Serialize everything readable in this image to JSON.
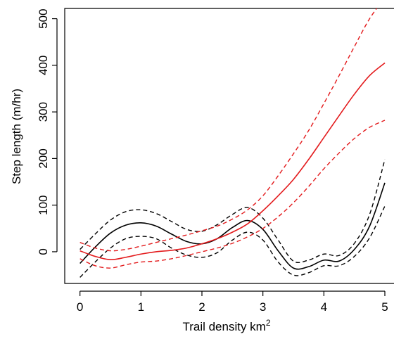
{
  "chart_data": {
    "type": "line",
    "title": "",
    "xlabel": "Trail density km",
    "xlabel_superscript": "2",
    "ylabel": "Step length (m/hr)",
    "xlim": [
      -0.25,
      5.15
    ],
    "ylim": [
      -68,
      522
    ],
    "xticks": [
      "0",
      "1",
      "2",
      "3",
      "4",
      "5"
    ],
    "yticks": [
      "0",
      "100",
      "200",
      "300",
      "400",
      "500"
    ],
    "xtick_values": [
      0,
      1,
      2,
      3,
      4,
      5
    ],
    "ytick_values": [
      0,
      100,
      200,
      300,
      400,
      500
    ],
    "grid": false,
    "legend": "none",
    "series": [
      {
        "color": "#000000",
        "style": "solid",
        "points": [
          [
            0,
            -25
          ],
          [
            0.25,
            10
          ],
          [
            0.5,
            40
          ],
          [
            0.75,
            57
          ],
          [
            1,
            62
          ],
          [
            1.25,
            55
          ],
          [
            1.5,
            38
          ],
          [
            1.75,
            22
          ],
          [
            2,
            17
          ],
          [
            2.25,
            28
          ],
          [
            2.5,
            52
          ],
          [
            2.75,
            67
          ],
          [
            3,
            48
          ],
          [
            3.25,
            2
          ],
          [
            3.5,
            -35
          ],
          [
            3.75,
            -32
          ],
          [
            4,
            -18
          ],
          [
            4.25,
            -20
          ],
          [
            4.5,
            5
          ],
          [
            4.75,
            55
          ],
          [
            5,
            148
          ]
        ]
      },
      {
        "color": "#000000",
        "style": "dashed",
        "points": [
          [
            0,
            -55
          ],
          [
            0.25,
            -22
          ],
          [
            0.5,
            8
          ],
          [
            0.75,
            28
          ],
          [
            1,
            33
          ],
          [
            1.25,
            28
          ],
          [
            1.5,
            8
          ],
          [
            1.75,
            -7
          ],
          [
            2,
            -12
          ],
          [
            2.25,
            -2
          ],
          [
            2.5,
            25
          ],
          [
            2.75,
            42
          ],
          [
            3,
            25
          ],
          [
            3.25,
            -22
          ],
          [
            3.5,
            -50
          ],
          [
            3.75,
            -45
          ],
          [
            4,
            -30
          ],
          [
            4.25,
            -30
          ],
          [
            4.5,
            -10
          ],
          [
            4.75,
            30
          ],
          [
            5,
            98
          ]
        ]
      },
      {
        "color": "#000000",
        "style": "dashed",
        "points": [
          [
            0,
            5
          ],
          [
            0.25,
            38
          ],
          [
            0.5,
            68
          ],
          [
            0.75,
            86
          ],
          [
            1,
            90
          ],
          [
            1.25,
            82
          ],
          [
            1.5,
            65
          ],
          [
            1.75,
            48
          ],
          [
            2,
            44
          ],
          [
            2.25,
            58
          ],
          [
            2.5,
            80
          ],
          [
            2.75,
            95
          ],
          [
            3,
            72
          ],
          [
            3.25,
            25
          ],
          [
            3.5,
            -20
          ],
          [
            3.75,
            -18
          ],
          [
            4,
            -5
          ],
          [
            4.25,
            -8
          ],
          [
            4.5,
            18
          ],
          [
            4.75,
            80
          ],
          [
            5,
            198
          ]
        ]
      },
      {
        "color": "#e31a1c",
        "style": "solid",
        "points": [
          [
            0,
            2
          ],
          [
            0.25,
            -10
          ],
          [
            0.5,
            -17
          ],
          [
            0.75,
            -12
          ],
          [
            1,
            -5
          ],
          [
            1.25,
            0
          ],
          [
            1.5,
            3
          ],
          [
            1.75,
            8
          ],
          [
            2,
            17
          ],
          [
            2.25,
            28
          ],
          [
            2.5,
            42
          ],
          [
            2.75,
            60
          ],
          [
            3,
            88
          ],
          [
            3.25,
            120
          ],
          [
            3.5,
            155
          ],
          [
            3.75,
            198
          ],
          [
            4,
            245
          ],
          [
            4.25,
            292
          ],
          [
            4.5,
            338
          ],
          [
            4.75,
            378
          ],
          [
            5,
            405
          ]
        ]
      },
      {
        "color": "#e31a1c",
        "style": "dashed",
        "points": [
          [
            0,
            -15
          ],
          [
            0.25,
            -30
          ],
          [
            0.5,
            -35
          ],
          [
            0.75,
            -28
          ],
          [
            1,
            -22
          ],
          [
            1.25,
            -20
          ],
          [
            1.5,
            -15
          ],
          [
            1.75,
            -8
          ],
          [
            2,
            0
          ],
          [
            2.25,
            8
          ],
          [
            2.5,
            18
          ],
          [
            2.75,
            32
          ],
          [
            3,
            50
          ],
          [
            3.25,
            75
          ],
          [
            3.5,
            105
          ],
          [
            3.75,
            140
          ],
          [
            4,
            178
          ],
          [
            4.25,
            212
          ],
          [
            4.5,
            243
          ],
          [
            4.75,
            267
          ],
          [
            5,
            282
          ]
        ]
      },
      {
        "color": "#e31a1c",
        "style": "dashed",
        "points": [
          [
            0,
            20
          ],
          [
            0.25,
            8
          ],
          [
            0.5,
            2
          ],
          [
            0.75,
            5
          ],
          [
            1,
            12
          ],
          [
            1.25,
            20
          ],
          [
            1.5,
            28
          ],
          [
            1.75,
            36
          ],
          [
            2,
            45
          ],
          [
            2.25,
            55
          ],
          [
            2.5,
            70
          ],
          [
            2.75,
            90
          ],
          [
            3,
            120
          ],
          [
            3.25,
            163
          ],
          [
            3.5,
            210
          ],
          [
            3.75,
            260
          ],
          [
            4,
            318
          ],
          [
            4.25,
            378
          ],
          [
            4.5,
            440
          ],
          [
            4.75,
            500
          ],
          [
            5,
            545
          ]
        ]
      }
    ]
  }
}
